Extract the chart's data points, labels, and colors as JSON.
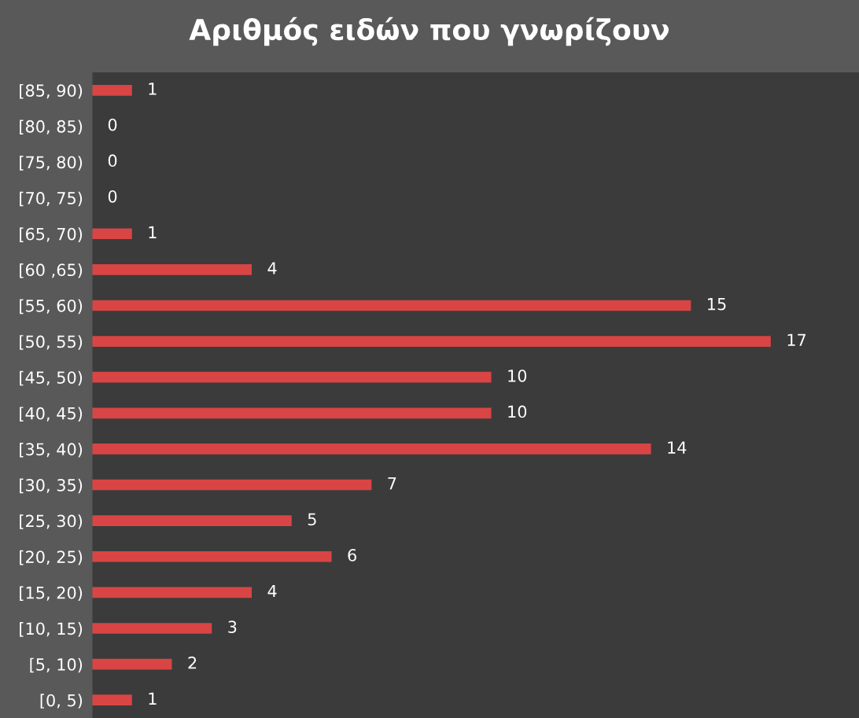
{
  "chart_data": {
    "type": "bar",
    "orientation": "horizontal",
    "title": "Αριθμός ειδών που γνωρίζουν",
    "categories": [
      "[85, 90)",
      "[80, 85)",
      "[75, 80)",
      "[70, 75)",
      "[65, 70)",
      "[60 ,65)",
      "[55, 60)",
      "[50, 55)",
      "[45, 50)",
      "[40, 45)",
      "[35, 40)",
      "[30, 35)",
      "[25, 30)",
      "[20, 25)",
      "[15, 20)",
      "[10, 15)",
      "[5, 10)",
      "[0, 5)"
    ],
    "values": [
      1,
      0,
      0,
      0,
      1,
      4,
      15,
      17,
      10,
      10,
      14,
      7,
      5,
      6,
      4,
      3,
      2,
      1
    ],
    "color": "#d94545",
    "data_labels": true,
    "grid": false,
    "legend": false
  }
}
